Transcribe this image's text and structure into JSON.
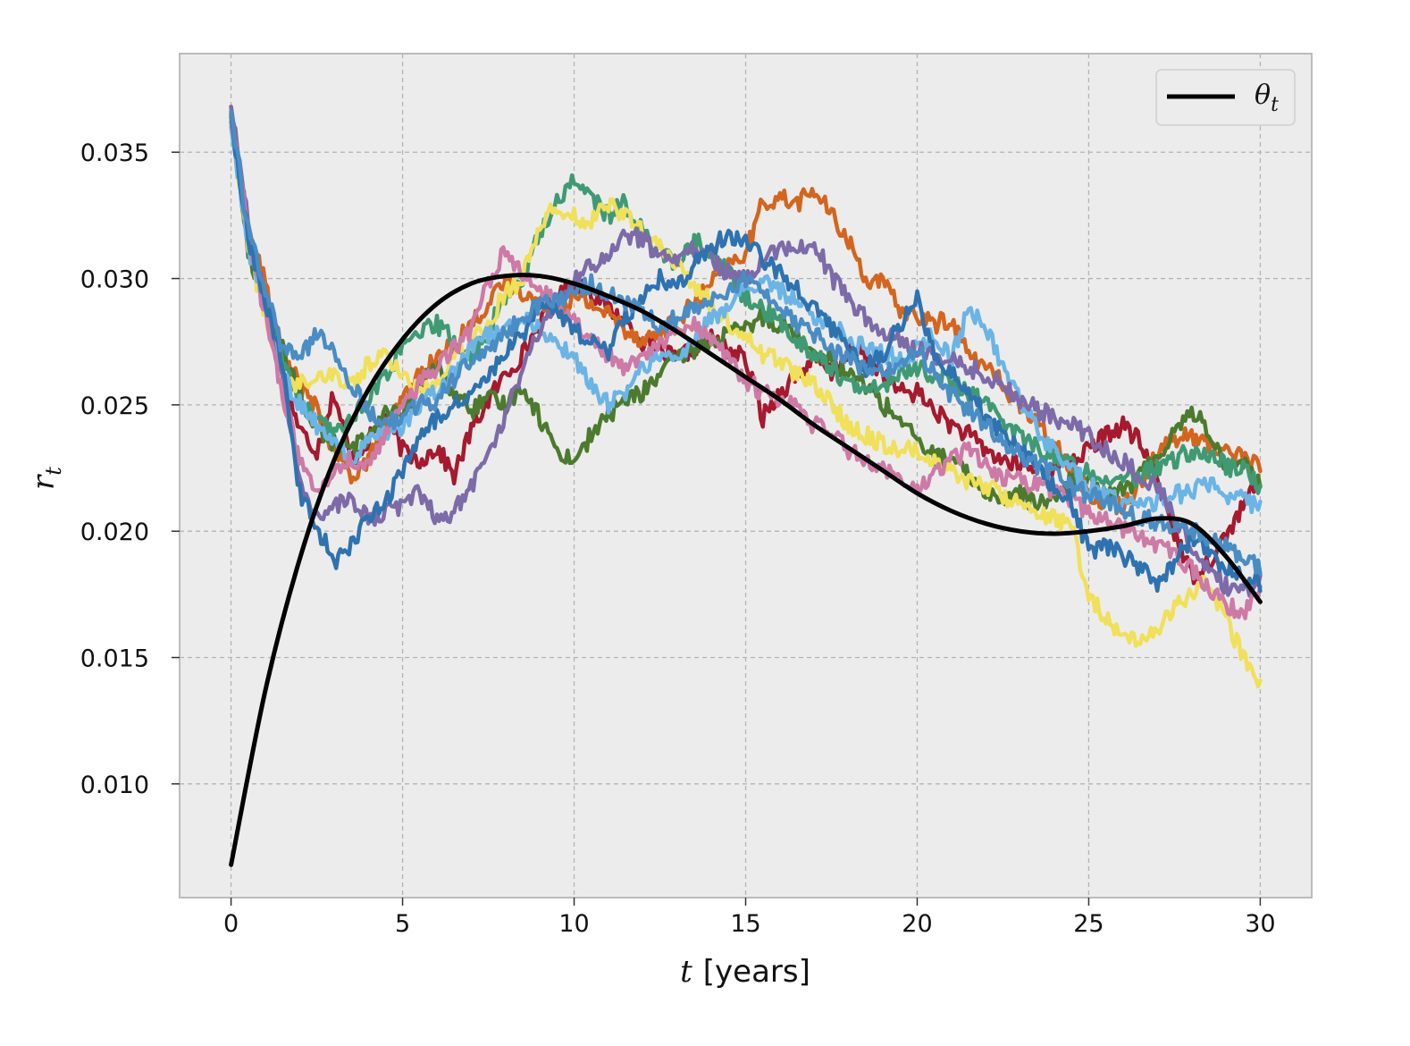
{
  "chart_data": {
    "type": "line",
    "title": "",
    "xlabel": "t [years]",
    "ylabel": "r_t",
    "xlim": [
      -1.5,
      31.5
    ],
    "ylim": [
      0.0055,
      0.0389
    ],
    "xticks": [
      0,
      5,
      10,
      15,
      20,
      25,
      30
    ],
    "xtick_labels": [
      "0",
      "5",
      "10",
      "15",
      "20",
      "25",
      "30"
    ],
    "yticks": [
      0.01,
      0.015,
      0.02,
      0.025,
      0.03,
      0.035
    ],
    "ytick_labels": [
      "0.010",
      "0.015",
      "0.020",
      "0.025",
      "0.030",
      "0.035"
    ],
    "grid": true,
    "legend": {
      "placement": "top-right",
      "entries": [
        "θ_t"
      ]
    },
    "legend_label": "θ",
    "legend_subscript": "t",
    "xlabel_var": "t",
    "xlabel_unit": "[years]",
    "ylabel_var": "r",
    "ylabel_sub": "t",
    "colors": {
      "background": "#ececec",
      "frame": "#bcbcbc",
      "grid": "#b4b4b4",
      "theta": "#000000",
      "paths": [
        "#a6192e",
        "#d4651e",
        "#4c7a2e",
        "#3f9a74",
        "#f0e05a",
        "#6bb4e6",
        "#7d6aa8",
        "#cd7aa6",
        "#2e72b0",
        "#4a8cc4"
      ]
    },
    "theta_series": {
      "name": "θ_t",
      "x": [
        0,
        1,
        2,
        3,
        4,
        5,
        6,
        7,
        8,
        9,
        10,
        11,
        12,
        13,
        14,
        15,
        16,
        17,
        18,
        19,
        20,
        21,
        22,
        23,
        24,
        25,
        26,
        27,
        28,
        29,
        30
      ],
      "y": [
        0.0068,
        0.0137,
        0.0189,
        0.0228,
        0.0256,
        0.0276,
        0.029,
        0.0298,
        0.0301,
        0.0301,
        0.0298,
        0.0293,
        0.0287,
        0.0279,
        0.027,
        0.0261,
        0.0252,
        0.0242,
        0.0233,
        0.0224,
        0.0215,
        0.0208,
        0.0203,
        0.02,
        0.0199,
        0.02,
        0.0202,
        0.0205,
        0.0203,
        0.019,
        0.0172
      ]
    },
    "paths_x": [
      0,
      0.5,
      1,
      1.5,
      2,
      2.5,
      3,
      3.5,
      4,
      4.5,
      5,
      5.5,
      6,
      6.5,
      7,
      7.5,
      8,
      8.5,
      9,
      9.5,
      10,
      10.5,
      11,
      11.5,
      12,
      12.5,
      13,
      13.5,
      14,
      14.5,
      15,
      15.5,
      16,
      16.5,
      17,
      17.5,
      18,
      18.5,
      19,
      19.5,
      20,
      20.5,
      21,
      21.5,
      22,
      22.5,
      23,
      23.5,
      24,
      24.5,
      25,
      25.5,
      26,
      26.5,
      27,
      27.5,
      28,
      28.5,
      29,
      29.5,
      30
    ],
    "paths": [
      {
        "y": [
          0.0365,
          0.0315,
          0.0295,
          0.0262,
          0.024,
          0.0232,
          0.0255,
          0.0228,
          0.0236,
          0.0245,
          0.0232,
          0.0228,
          0.0233,
          0.0222,
          0.024,
          0.0252,
          0.0262,
          0.027,
          0.0282,
          0.0292,
          0.0298,
          0.0295,
          0.0288,
          0.0283,
          0.0275,
          0.0271,
          0.0268,
          0.0273,
          0.0276,
          0.0272,
          0.0268,
          0.0245,
          0.0255,
          0.0262,
          0.0268,
          0.0262,
          0.0272,
          0.027,
          0.0262,
          0.0255,
          0.0255,
          0.0248,
          0.0242,
          0.0238,
          0.0232,
          0.0228,
          0.0226,
          0.0224,
          0.0226,
          0.0228,
          0.0232,
          0.0238,
          0.0242,
          0.0235,
          0.022,
          0.02,
          0.0182,
          0.0188,
          0.0198,
          0.021,
          0.022
        ]
      },
      {
        "y": [
          0.0368,
          0.032,
          0.0298,
          0.027,
          0.0258,
          0.0248,
          0.0232,
          0.0222,
          0.0228,
          0.024,
          0.0252,
          0.0262,
          0.0268,
          0.0275,
          0.0282,
          0.029,
          0.0298,
          0.0295,
          0.029,
          0.0288,
          0.0292,
          0.029,
          0.0286,
          0.028,
          0.0276,
          0.0278,
          0.0284,
          0.029,
          0.0298,
          0.0305,
          0.031,
          0.033,
          0.0332,
          0.033,
          0.0335,
          0.0325,
          0.0315,
          0.03,
          0.0298,
          0.0288,
          0.0285,
          0.0282,
          0.0284,
          0.027,
          0.0265,
          0.0258,
          0.025,
          0.0242,
          0.0235,
          0.0225,
          0.0215,
          0.0212,
          0.021,
          0.022,
          0.0232,
          0.0236,
          0.0238,
          0.0234,
          0.0232,
          0.023,
          0.0225
        ]
      },
      {
        "y": [
          0.0366,
          0.031,
          0.029,
          0.0272,
          0.0255,
          0.024,
          0.0235,
          0.0232,
          0.0238,
          0.0248,
          0.0245,
          0.0258,
          0.0265,
          0.0255,
          0.0248,
          0.0252,
          0.025,
          0.0258,
          0.0245,
          0.0232,
          0.0228,
          0.0238,
          0.0246,
          0.0252,
          0.0255,
          0.0262,
          0.0268,
          0.0272,
          0.0275,
          0.0278,
          0.028,
          0.0285,
          0.0282,
          0.0278,
          0.0272,
          0.0268,
          0.0262,
          0.0258,
          0.025,
          0.0245,
          0.0235,
          0.023,
          0.0228,
          0.0222,
          0.0216,
          0.0212,
          0.0215,
          0.021,
          0.0215,
          0.022,
          0.0222,
          0.0215,
          0.0216,
          0.0222,
          0.023,
          0.024,
          0.0248,
          0.024,
          0.0225,
          0.0228,
          0.0218
        ]
      },
      {
        "y": [
          0.0362,
          0.0318,
          0.0292,
          0.0268,
          0.025,
          0.0245,
          0.0238,
          0.0245,
          0.0252,
          0.0262,
          0.0272,
          0.0278,
          0.0282,
          0.0275,
          0.0268,
          0.028,
          0.0292,
          0.03,
          0.0318,
          0.033,
          0.034,
          0.0332,
          0.0325,
          0.033,
          0.0318,
          0.0312,
          0.0305,
          0.0315,
          0.031,
          0.0302,
          0.0292,
          0.0288,
          0.0282,
          0.0276,
          0.027,
          0.0265,
          0.0258,
          0.0255,
          0.0258,
          0.0262,
          0.0265,
          0.0262,
          0.0258,
          0.0255,
          0.025,
          0.0244,
          0.0238,
          0.0233,
          0.023,
          0.0226,
          0.0224,
          0.0222,
          0.022,
          0.0222,
          0.0225,
          0.0228,
          0.0232,
          0.023,
          0.0226,
          0.0224,
          0.0218
        ]
      },
      {
        "y": [
          0.0364,
          0.0312,
          0.0285,
          0.0262,
          0.0258,
          0.0262,
          0.0262,
          0.0258,
          0.0266,
          0.027,
          0.0262,
          0.0255,
          0.026,
          0.027,
          0.0275,
          0.0282,
          0.0295,
          0.03,
          0.0322,
          0.0328,
          0.0325,
          0.0322,
          0.033,
          0.0325,
          0.0318,
          0.0312,
          0.0305,
          0.0298,
          0.029,
          0.0282,
          0.0278,
          0.027,
          0.0268,
          0.0262,
          0.0258,
          0.025,
          0.0242,
          0.0238,
          0.0235,
          0.0232,
          0.0232,
          0.0228,
          0.0224,
          0.022,
          0.0218,
          0.0214,
          0.0212,
          0.0208,
          0.0205,
          0.0202,
          0.0175,
          0.0165,
          0.0158,
          0.0155,
          0.0162,
          0.017,
          0.0176,
          0.018,
          0.0165,
          0.015,
          0.014
        ]
      },
      {
        "y": [
          0.036,
          0.0312,
          0.029,
          0.0262,
          0.025,
          0.0242,
          0.0235,
          0.0228,
          0.0235,
          0.0238,
          0.0242,
          0.025,
          0.0256,
          0.0262,
          0.0272,
          0.0278,
          0.028,
          0.0285,
          0.028,
          0.0275,
          0.0268,
          0.0258,
          0.025,
          0.0255,
          0.0265,
          0.027,
          0.0268,
          0.0275,
          0.0284,
          0.029,
          0.0296,
          0.0298,
          0.0295,
          0.0292,
          0.0285,
          0.0282,
          0.0276,
          0.0272,
          0.027,
          0.0268,
          0.0272,
          0.0278,
          0.0268,
          0.0288,
          0.028,
          0.0265,
          0.0252,
          0.024,
          0.0232,
          0.0224,
          0.0218,
          0.0215,
          0.021,
          0.021,
          0.0212,
          0.0214,
          0.0216,
          0.0218,
          0.0215,
          0.0212,
          0.021
        ]
      },
      {
        "y": [
          0.0368,
          0.0322,
          0.0292,
          0.0258,
          0.022,
          0.0205,
          0.021,
          0.0212,
          0.0205,
          0.0208,
          0.021,
          0.0215,
          0.0205,
          0.0208,
          0.0218,
          0.0232,
          0.0245,
          0.0265,
          0.028,
          0.029,
          0.03,
          0.0305,
          0.031,
          0.0318,
          0.0315,
          0.031,
          0.0305,
          0.0312,
          0.0308,
          0.0302,
          0.03,
          0.0308,
          0.0312,
          0.031,
          0.0315,
          0.03,
          0.0292,
          0.0285,
          0.028,
          0.0275,
          0.0272,
          0.027,
          0.0268,
          0.0265,
          0.0262,
          0.0258,
          0.0252,
          0.0248,
          0.0245,
          0.0242,
          0.0238,
          0.0232,
          0.0228,
          0.0222,
          0.0218,
          0.0205,
          0.0195,
          0.0186,
          0.0178,
          0.0176,
          0.018
        ]
      },
      {
        "y": [
          0.0362,
          0.0318,
          0.0285,
          0.0255,
          0.0228,
          0.0215,
          0.0222,
          0.0228,
          0.0225,
          0.0238,
          0.025,
          0.0258,
          0.0265,
          0.0272,
          0.028,
          0.0298,
          0.0312,
          0.03,
          0.0295,
          0.029,
          0.0282,
          0.0275,
          0.027,
          0.0265,
          0.0268,
          0.0275,
          0.028,
          0.0282,
          0.0276,
          0.0268,
          0.026,
          0.0255,
          0.0252,
          0.0248,
          0.0242,
          0.0238,
          0.0232,
          0.0228,
          0.0225,
          0.022,
          0.0218,
          0.0222,
          0.0228,
          0.0232,
          0.0226,
          0.0222,
          0.022,
          0.0218,
          0.0216,
          0.0212,
          0.0208,
          0.0205,
          0.02,
          0.0198,
          0.0195,
          0.019,
          0.0185,
          0.0178,
          0.017,
          0.0168,
          0.0175
        ]
      },
      {
        "y": [
          0.0364,
          0.0315,
          0.0292,
          0.0265,
          0.0215,
          0.0202,
          0.0188,
          0.0195,
          0.0205,
          0.021,
          0.0225,
          0.0238,
          0.0245,
          0.025,
          0.0255,
          0.0262,
          0.027,
          0.0278,
          0.029,
          0.0288,
          0.028,
          0.0275,
          0.027,
          0.0285,
          0.0292,
          0.03,
          0.0296,
          0.0305,
          0.0312,
          0.0318,
          0.0315,
          0.0308,
          0.0302,
          0.0296,
          0.0288,
          0.028,
          0.0272,
          0.0265,
          0.027,
          0.0282,
          0.0292,
          0.027,
          0.0262,
          0.0256,
          0.0245,
          0.0238,
          0.0232,
          0.0225,
          0.0218,
          0.0212,
          0.0192,
          0.0195,
          0.019,
          0.0185,
          0.018,
          0.0188,
          0.0198,
          0.0192,
          0.0185,
          0.0182,
          0.018
        ]
      },
      {
        "y": [
          0.0366,
          0.0318,
          0.0296,
          0.0272,
          0.0268,
          0.0278,
          0.0272,
          0.0258,
          0.0248,
          0.0242,
          0.0245,
          0.025,
          0.0252,
          0.026,
          0.0268,
          0.0272,
          0.0278,
          0.0284,
          0.029,
          0.0292,
          0.0295,
          0.0298,
          0.0294,
          0.029,
          0.0286,
          0.0282,
          0.0284,
          0.0288,
          0.0292,
          0.0296,
          0.03,
          0.0294,
          0.0288,
          0.0282,
          0.0278,
          0.0272,
          0.0268,
          0.0264,
          0.0262,
          0.0266,
          0.0272,
          0.0262,
          0.0254,
          0.0248,
          0.0242,
          0.0236,
          0.023,
          0.0226,
          0.0222,
          0.0218,
          0.0214,
          0.0212,
          0.0208,
          0.0206,
          0.0204,
          0.0202,
          0.02,
          0.0198,
          0.0194,
          0.019,
          0.0186
        ]
      }
    ]
  }
}
